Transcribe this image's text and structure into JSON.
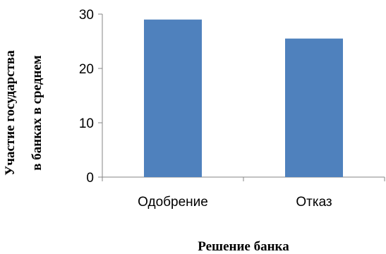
{
  "chart_data": {
    "type": "bar",
    "categories": [
      "Одобрение",
      "Отказ"
    ],
    "values": [
      29,
      25.5
    ],
    "xlabel": "Решение банка",
    "ylabel_lines": [
      "Участие государства",
      "в банках в среднем"
    ],
    "ylim": [
      0,
      30
    ],
    "yticks": [
      0,
      10,
      20,
      30
    ],
    "grid": false,
    "legend": "none",
    "bar_color": "#4f81bd",
    "axis_color": "#868686"
  }
}
